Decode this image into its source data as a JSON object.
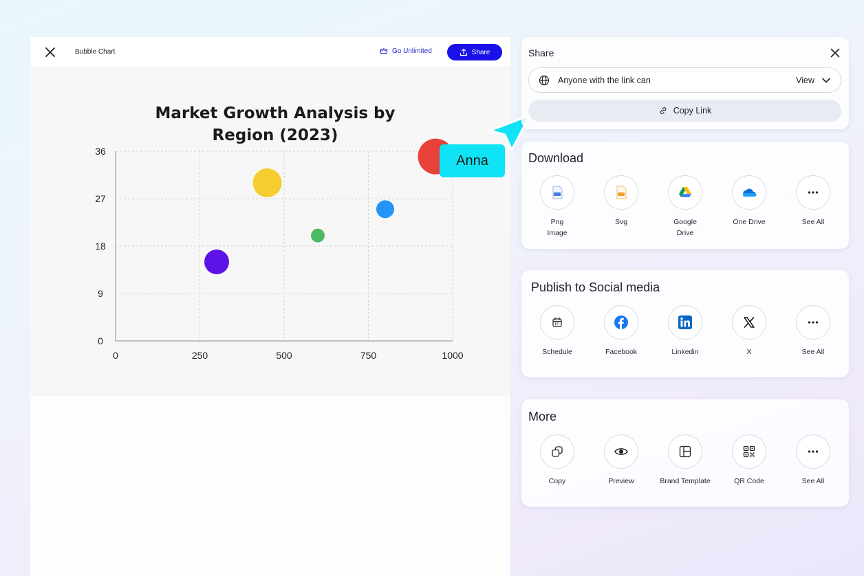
{
  "editor": {
    "title": "Bubble Chart",
    "go_unlimited": "Go Unlimited",
    "share_label": "Share"
  },
  "chart_data": {
    "type": "scatter",
    "title_lines": [
      "Market Growth Analysis by",
      "Region (2023)"
    ],
    "xlim": [
      0,
      1000
    ],
    "ylim": [
      0,
      36
    ],
    "x_ticks": [
      "0",
      "250",
      "500",
      "750",
      "1000"
    ],
    "y_ticks": [
      "0",
      "9",
      "18",
      "27",
      "36"
    ],
    "grid": true,
    "points": [
      {
        "x": 300,
        "y": 15,
        "r": 18,
        "color": "#5d13e7"
      },
      {
        "x": 450,
        "y": 30,
        "r": 21,
        "color": "#f5cd30"
      },
      {
        "x": 600,
        "y": 20,
        "r": 10,
        "color": "#4cb963"
      },
      {
        "x": 800,
        "y": 25,
        "r": 13,
        "color": "#2494f6"
      },
      {
        "x": 950,
        "y": 35,
        "r": 26,
        "color": "#e8413a"
      }
    ]
  },
  "collaborator": {
    "name": "Anna",
    "color": "#11e3f7"
  },
  "share_panel": {
    "title": "Share",
    "link_access": "Anyone with the link can",
    "permission": "View",
    "copy_link": "Copy Link"
  },
  "download": {
    "title": "Download",
    "items": [
      {
        "line1": "Png",
        "line2": "Image",
        "icon": "png-file-icon"
      },
      {
        "line1": "Svg",
        "line2": "",
        "icon": "svg-file-icon"
      },
      {
        "line1": "Google",
        "line2": "Drive",
        "icon": "google-drive-icon"
      },
      {
        "line1": "One Drive",
        "line2": "",
        "icon": "one-drive-icon"
      },
      {
        "line1": "See All",
        "line2": "",
        "icon": "more-icon"
      }
    ]
  },
  "social": {
    "title": "Publish to Social media",
    "items": [
      {
        "label": "Schedule",
        "icon": "calendar-icon"
      },
      {
        "label": "Facebook",
        "icon": "facebook-icon"
      },
      {
        "label": "Linkedin",
        "icon": "linkedin-icon"
      },
      {
        "label": "X",
        "icon": "x-logo-icon"
      },
      {
        "label": "See All",
        "icon": "more-icon"
      }
    ]
  },
  "more": {
    "title": "More",
    "items": [
      {
        "label": "Copy",
        "icon": "copy-icon"
      },
      {
        "label": "Preview",
        "icon": "eye-icon"
      },
      {
        "label": "Brand Template",
        "icon": "template-icon"
      },
      {
        "label": "QR Code",
        "icon": "qr-code-icon"
      },
      {
        "label": "See All",
        "icon": "more-icon"
      }
    ]
  },
  "colors": {
    "primary": "#1a10e8",
    "accent_cyan": "#11e3f7",
    "facebook": "#1877f2",
    "linkedin": "#0a66c2"
  }
}
